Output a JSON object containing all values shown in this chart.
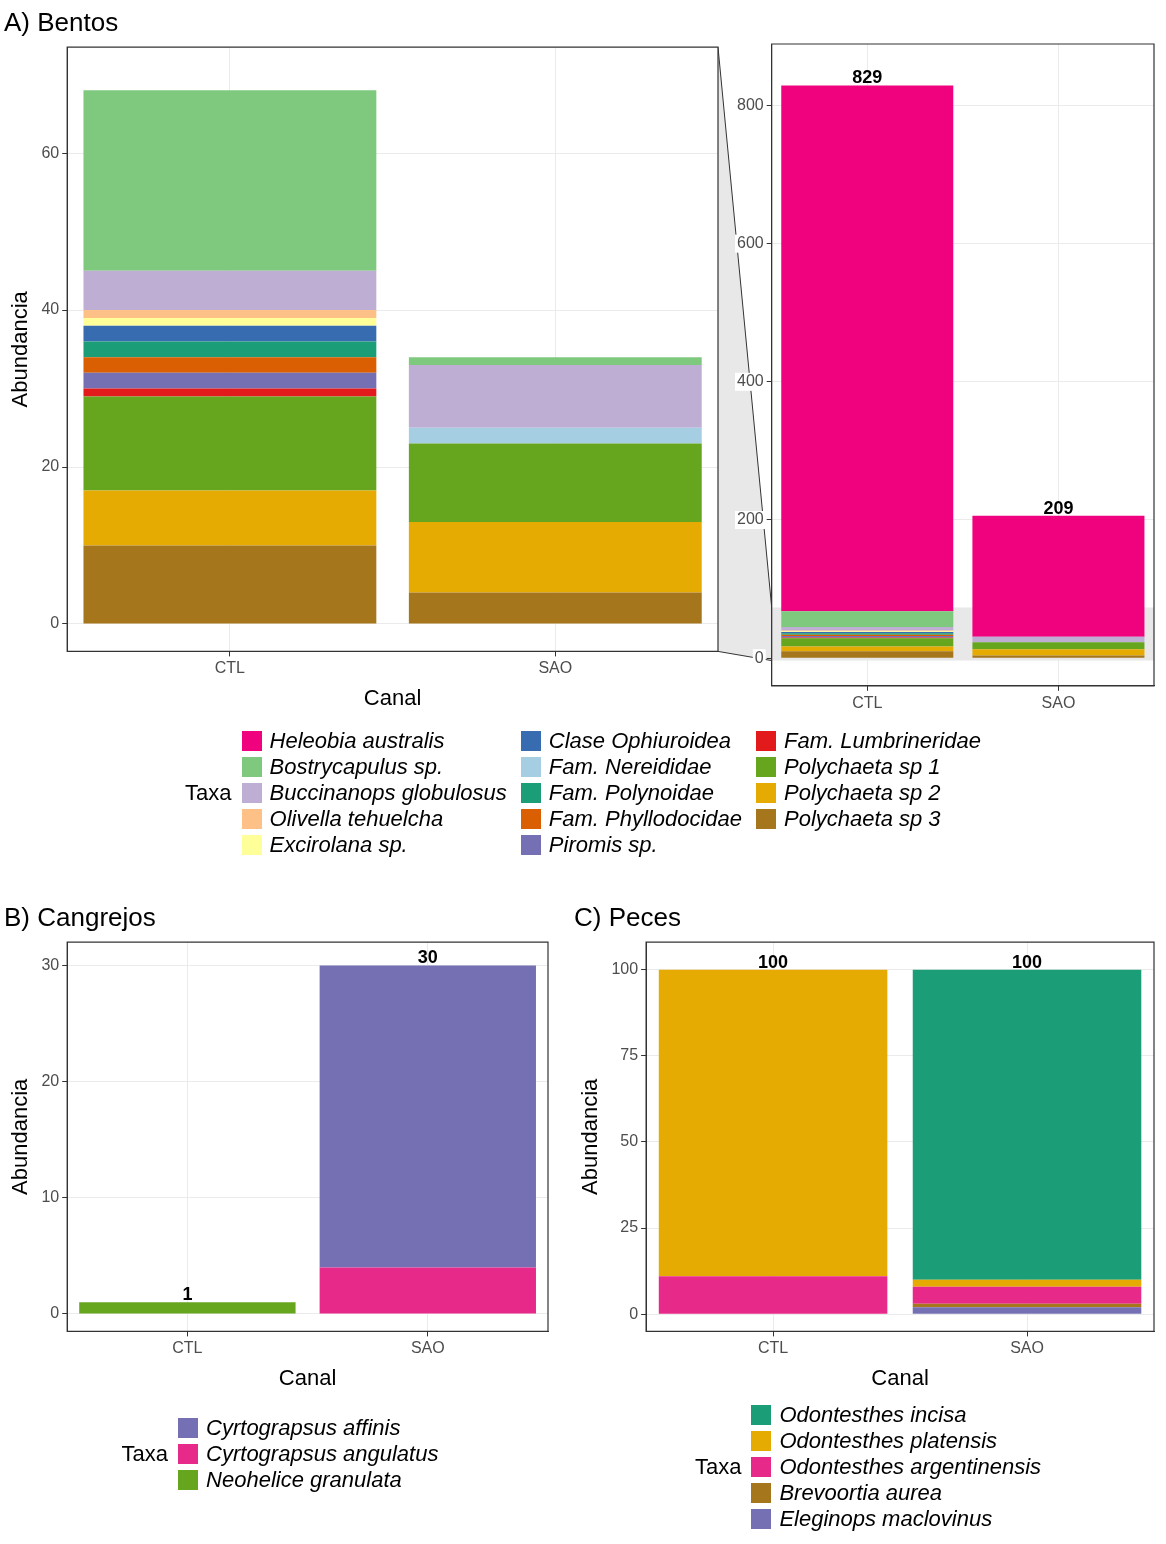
{
  "chart_data": [
    {
      "type": "bar",
      "title": "A) Bentos",
      "xlabel": "Canal",
      "ylabel": "Abundancia",
      "legend_title": "Taxa",
      "legend": "bottom",
      "stacked": true,
      "grid": true,
      "categories": [
        "CTL",
        "SAO"
      ],
      "ylim": [
        -3.5,
        73.5
      ],
      "yticks": [
        0,
        20,
        40,
        60
      ],
      "series": [
        {
          "name": "Polychaeta sp 3",
          "color": "#a6761d",
          "values": [
            10,
            4
          ]
        },
        {
          "name": "Polychaeta sp 2",
          "color": "#e6ab02",
          "values": [
            7,
            9
          ]
        },
        {
          "name": "Polychaeta sp 1",
          "color": "#66a61e",
          "values": [
            12,
            10
          ]
        },
        {
          "name": "Fam. Lumbrineridae",
          "color": "#e31a1c",
          "values": [
            1,
            0
          ]
        },
        {
          "name": "Piromis sp.",
          "color": "#7570b3",
          "values": [
            2,
            0
          ]
        },
        {
          "name": "Fam. Phyllodocidae",
          "color": "#d95f02",
          "values": [
            2,
            0
          ]
        },
        {
          "name": "Fam. Polynoidae",
          "color": "#1b9e77",
          "values": [
            2,
            0
          ]
        },
        {
          "name": "Fam. Nereididae",
          "color": "#a6cee3",
          "values": [
            0,
            2
          ]
        },
        {
          "name": "Clase Ophiuroidea",
          "color": "#386cb0",
          "values": [
            2,
            0
          ]
        },
        {
          "name": "Excirolana sp.",
          "color": "#ffff99",
          "values": [
            1,
            0
          ]
        },
        {
          "name": "Olivella tehuelcha",
          "color": "#fdc086",
          "values": [
            1,
            0
          ]
        },
        {
          "name": "Buccinanops globulosus",
          "color": "#beaed4",
          "values": [
            5,
            8
          ]
        },
        {
          "name": "Bostrycapulus sp.",
          "color": "#7fc97f",
          "values": [
            23,
            1
          ]
        },
        {
          "name": "Heleobia australis",
          "color": "#f0027f",
          "values": [
            null,
            null
          ]
        }
      ]
    },
    {
      "type": "bar",
      "stacked": true,
      "grid": true,
      "categories": [
        "CTL",
        "SAO"
      ],
      "ylim": [
        -40,
        889
      ],
      "yticks": [
        0,
        200,
        400,
        600,
        800
      ],
      "totals": [
        "829",
        "209"
      ],
      "bands": [
        {
          "axis": "y",
          "from": -3.5,
          "to": 73.5,
          "color": "#e8e8e8"
        }
      ],
      "series": [
        {
          "color": "#a6761d",
          "values": [
            10,
            4
          ]
        },
        {
          "color": "#e6ab02",
          "values": [
            7,
            9
          ]
        },
        {
          "color": "#66a61e",
          "values": [
            12,
            10
          ]
        },
        {
          "color": "#e31a1c",
          "values": [
            1,
            0
          ]
        },
        {
          "color": "#7570b3",
          "values": [
            2,
            0
          ]
        },
        {
          "color": "#d95f02",
          "values": [
            2,
            0
          ]
        },
        {
          "color": "#1b9e77",
          "values": [
            2,
            0
          ]
        },
        {
          "color": "#a6cee3",
          "values": [
            0,
            null
          ]
        },
        {
          "color": "#386cb0",
          "values": [
            2,
            0
          ]
        },
        {
          "color": "#ffff99",
          "values": [
            1,
            0
          ]
        },
        {
          "color": "#fdc086",
          "values": [
            1,
            0
          ]
        },
        {
          "color": "#beaed4",
          "values": [
            5,
            8
          ]
        },
        {
          "color": "#7fc97f",
          "values": [
            23,
            null
          ]
        },
        {
          "color": "#f0027f",
          "values": [
            761,
            175
          ]
        }
      ]
    },
    {
      "type": "bar",
      "title": "B) Cangrejos",
      "xlabel": "Canal",
      "ylabel": "Abundancia",
      "legend_title": "Taxa",
      "legend": "bottom",
      "stacked": true,
      "grid": true,
      "categories": [
        "CTL",
        "SAO"
      ],
      "ylim": [
        -1.5,
        32
      ],
      "yticks": [
        0,
        10,
        20,
        30
      ],
      "totals": [
        "1",
        "30"
      ],
      "series": [
        {
          "name": "Neohelice granulata",
          "color": "#66a61e",
          "values": [
            1,
            0
          ]
        },
        {
          "name": "Cyrtograpsus angulatus",
          "color": "#e7298a",
          "values": [
            0,
            4
          ]
        },
        {
          "name": "Cyrtograpsus affinis",
          "color": "#7570b3",
          "values": [
            0,
            26
          ]
        }
      ]
    },
    {
      "type": "bar",
      "title": "C) Peces",
      "xlabel": "Canal",
      "ylabel": "Abundancia",
      "legend_title": "Taxa",
      "legend": "bottom",
      "stacked": true,
      "grid": true,
      "categories": [
        "CTL",
        "SAO"
      ],
      "ylim": [
        -5,
        108
      ],
      "yticks": [
        0,
        25,
        50,
        75,
        100
      ],
      "totals": [
        "100",
        "100"
      ],
      "series": [
        {
          "name": "Eleginops maclovinus",
          "color": "#7570b3",
          "values": [
            0,
            2
          ]
        },
        {
          "name": "Brevoortia aurea",
          "color": "#a6761d",
          "values": [
            0,
            1
          ]
        },
        {
          "name": "Odontesthes argentinensis",
          "color": "#e7298a",
          "values": [
            11,
            5
          ]
        },
        {
          "name": "Odontesthes platensis",
          "color": "#e6ab02",
          "values": [
            89,
            2
          ]
        },
        {
          "name": "Odontesthes incisa",
          "color": "#1b9e77",
          "values": [
            0,
            90
          ]
        }
      ]
    }
  ]
}
